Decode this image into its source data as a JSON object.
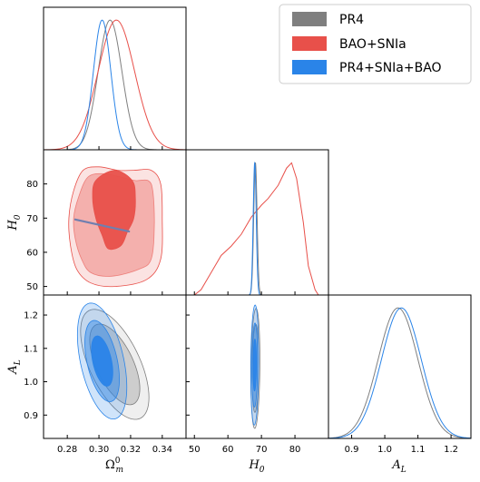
{
  "chart_data": {
    "type": "triangle-plot",
    "legend": {
      "placement": "top-right",
      "entries": [
        {
          "label": "PR4",
          "color": "#7f7f7f"
        },
        {
          "label": "BAO+SNIa",
          "color": "#e8504a"
        },
        {
          "label": "PR4+SNIa+BAO",
          "color": "#2a84e8"
        }
      ]
    },
    "parameters": [
      {
        "key": "omega_m",
        "label": "Ωm0",
        "label_main": "Ω",
        "label_sub": "m",
        "label_sup": "0",
        "range": [
          0.265,
          0.355
        ],
        "ticks": [
          "0.28",
          "0.30",
          "0.32",
          "0.34"
        ],
        "tick_values": [
          0.28,
          0.3,
          0.32,
          0.34
        ]
      },
      {
        "key": "H0",
        "label": "H0",
        "label_main": "H",
        "label_sub": "0",
        "range": [
          47.5,
          90
        ],
        "ticks": [
          "50",
          "60",
          "70",
          "80"
        ],
        "tick_values": [
          50,
          60,
          70,
          80
        ]
      },
      {
        "key": "AL",
        "label": "AL",
        "label_main": "A",
        "label_sub": "L",
        "range": [
          0.83,
          1.26
        ],
        "ticks": [
          "0.9",
          "1.0",
          "1.1",
          "1.2"
        ],
        "tick_values": [
          0.9,
          1.0,
          1.1,
          1.2
        ]
      }
    ],
    "marginals": {
      "omega_m": [
        {
          "series": "PR4",
          "peak": 0.307,
          "sigma": 0.0075
        },
        {
          "series": "BAO+SNIa",
          "peak": 0.311,
          "sigma": 0.0115
        },
        {
          "series": "PR4+SNIa+BAO",
          "peak": 0.302,
          "sigma": 0.0055
        }
      ],
      "H0": [
        {
          "series": "PR4",
          "peak": 68.2,
          "sigma": 0.5
        },
        {
          "series": "PR4+SNIa+BAO",
          "peak": 68.0,
          "sigma": 0.45
        }
      ],
      "AL": [
        {
          "series": "PR4",
          "peak": 1.04,
          "sigma": 0.06
        },
        {
          "series": "PR4+SNIa+BAO",
          "peak": 1.05,
          "sigma": 0.06
        }
      ]
    },
    "H0_bao_sn_curve": [
      [
        50,
        0
      ],
      [
        52,
        0.04
      ],
      [
        55,
        0.17
      ],
      [
        58,
        0.3
      ],
      [
        61,
        0.37
      ],
      [
        64,
        0.46
      ],
      [
        67,
        0.59
      ],
      [
        70,
        0.68
      ],
      [
        72,
        0.73
      ],
      [
        75,
        0.83
      ],
      [
        77.5,
        0.96
      ],
      [
        79,
        1.0
      ],
      [
        80.5,
        0.88
      ],
      [
        82.5,
        0.55
      ],
      [
        84,
        0.22
      ],
      [
        86,
        0.04
      ],
      [
        87,
        0
      ]
    ],
    "contours": {
      "omega_m_vs_H0": {
        "BAO+SNIa": {
          "outer": [
            [
              0.284,
              78
            ],
            [
              0.29,
              84
            ],
            [
              0.3,
              85
            ],
            [
              0.312,
              84
            ],
            [
              0.322,
              84
            ],
            [
              0.333,
              84
            ],
            [
              0.339,
              80
            ],
            [
              0.34,
              70
            ],
            [
              0.339,
              58
            ],
            [
              0.33,
              52
            ],
            [
              0.31,
              50
            ],
            [
              0.295,
              51
            ],
            [
              0.286,
              55
            ],
            [
              0.282,
              62
            ],
            [
              0.281,
              70
            ]
          ],
          "mid": [
            [
              0.287,
              76
            ],
            [
              0.293,
              82
            ],
            [
              0.303,
              83
            ],
            [
              0.314,
              82
            ],
            [
              0.323,
              81
            ],
            [
              0.331,
              81
            ],
            [
              0.334,
              78
            ],
            [
              0.335,
              68
            ],
            [
              0.333,
              58
            ],
            [
              0.325,
              55
            ],
            [
              0.308,
              53
            ],
            [
              0.295,
              54
            ],
            [
              0.289,
              58
            ],
            [
              0.285,
              64
            ],
            [
              0.284,
              70
            ]
          ],
          "inner": [
            [
              0.298,
              81
            ],
            [
              0.31,
              84
            ],
            [
              0.321,
              81
            ],
            [
              0.323,
              76
            ],
            [
              0.322,
              70
            ],
            [
              0.318,
              66
            ],
            [
              0.314,
              62
            ],
            [
              0.306,
              61
            ],
            [
              0.302,
              65
            ],
            [
              0.298,
              70
            ],
            [
              0.296,
              76
            ]
          ]
        },
        "PR4+SNIa+BAO": {
          "from": [
            0.285,
            69.6
          ],
          "to": [
            0.319,
            66.1
          ]
        }
      },
      "omega_m_vs_AL": {
        "PR4": {
          "center": [
            0.31,
            1.052
          ],
          "sx": 0.0072,
          "sy": 0.055,
          "rho": -0.6
        },
        "PR4+SNIa+BAO": {
          "center": [
            0.302,
            1.062
          ],
          "sx": 0.0052,
          "sy": 0.058,
          "rho": -0.45
        }
      },
      "H0_vs_AL": {
        "PR4": {
          "center": [
            68.2,
            1.04
          ],
          "sx": 0.45,
          "sy": 0.06,
          "rho": 0.15
        },
        "PR4+SNIa+BAO": {
          "center": [
            68.0,
            1.05
          ],
          "sx": 0.4,
          "sy": 0.06,
          "rho": 0.1
        }
      }
    },
    "grid": false
  }
}
